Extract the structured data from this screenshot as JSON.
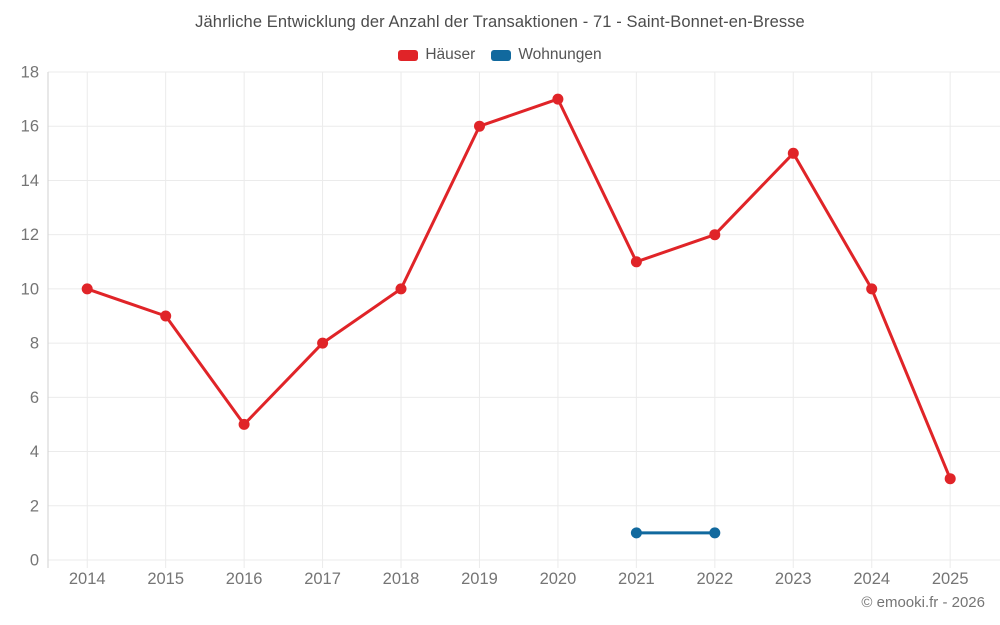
{
  "page": {
    "title": "Jährliche Entwicklung der Anzahl der Transaktionen - 71 - Saint-Bonnet-en-Bresse"
  },
  "legend": {
    "items": [
      {
        "label": "Häuser",
        "color": "#e02428"
      },
      {
        "label": "Wohnungen",
        "color": "#11699e"
      }
    ]
  },
  "footer": {
    "copyright": "© emooki.fr - 2026"
  },
  "chart_data": {
    "type": "line",
    "title": "Jährliche Entwicklung der Anzahl der Transaktionen - 71 - Saint-Bonnet-en-Bresse",
    "categories": [
      "2014",
      "2015",
      "2016",
      "2017",
      "2018",
      "2019",
      "2020",
      "2021",
      "2022",
      "2023",
      "2024",
      "2025"
    ],
    "series": [
      {
        "name": "Häuser",
        "color": "#e02428",
        "values": [
          10,
          9,
          5,
          8,
          10,
          16,
          17,
          11,
          12,
          15,
          10,
          3
        ]
      },
      {
        "name": "Wohnungen",
        "color": "#11699e",
        "values": [
          null,
          null,
          null,
          null,
          null,
          null,
          null,
          1,
          1,
          null,
          null,
          null
        ]
      }
    ],
    "xlabel": "",
    "ylabel": "",
    "ylim": [
      0,
      18
    ],
    "ytick_step": 2,
    "grid": true,
    "legend_position": "top",
    "styles": {
      "grid_color": "#ebebeb",
      "axis_color": "#d2d2d2",
      "tick_label_color": "#757575",
      "line_width": 3,
      "point_radius": 5.5
    }
  }
}
